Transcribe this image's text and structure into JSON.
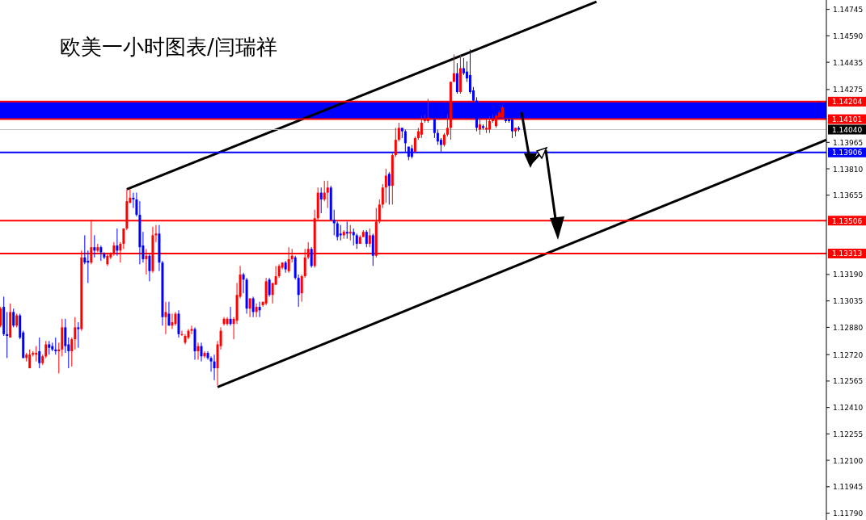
{
  "chart_data": {
    "type": "candlestick",
    "title": "欧美一小时图表/闫瑞祥",
    "tick_labels": "y",
    "grid": false,
    "ylim": [
      1.1175,
      1.148
    ],
    "yticks": [
      1.14745,
      {
        "value": 1.1459,
        "label": "1.14590"
      },
      1.14435,
      1.14275,
      1.13965,
      {
        "value": 1.1381,
        "label": "1.13810"
      },
      1.13655,
      {
        "value": 1.1319,
        "label": "1.13190"
      },
      1.13035,
      {
        "value": 1.1288,
        "label": "1.12880"
      },
      {
        "value": 1.1272,
        "label": "1.12720"
      },
      1.12565,
      {
        "value": 1.1241,
        "label": "1.12410"
      },
      1.12255,
      {
        "value": 1.121,
        "label": "1.12100"
      },
      1.11945,
      {
        "value": 1.1179,
        "label": "1.11790"
      }
    ],
    "bands": [
      {
        "axis": "y",
        "from": 1.14101,
        "to": 1.14204,
        "color": "#0000ff"
      }
    ],
    "ref_lines": [
      {
        "axis": "y",
        "value": 1.14204,
        "label": "1.14204",
        "color": "#ff0000"
      },
      {
        "axis": "y",
        "value": 1.14101,
        "label": "1.14101",
        "color": "#ff0000"
      },
      {
        "axis": "y",
        "value": 1.1404,
        "label": "1.14040",
        "color": "#c0c0c0"
      },
      {
        "axis": "y",
        "value": 1.13906,
        "label": "1.13906",
        "color": "#0000ff"
      },
      {
        "axis": "y",
        "value": 1.13506,
        "label": "1.13506",
        "color": "#ff0000"
      },
      {
        "axis": "y",
        "value": 1.13313,
        "label": "1.13313",
        "color": "#ff0000"
      }
    ],
    "categories": [
      null,
      null,
      null,
      null,
      null,
      null,
      null,
      null,
      null,
      null,
      null,
      null,
      null,
      null,
      null,
      null,
      null,
      null,
      null,
      null,
      null,
      null,
      null,
      null,
      null,
      null,
      null,
      null,
      null,
      null,
      null,
      null,
      null,
      null,
      null,
      null,
      null,
      null,
      null,
      null,
      null,
      null,
      null,
      null,
      null,
      null,
      null,
      null,
      null,
      null,
      null,
      null,
      null,
      null,
      null,
      null,
      null,
      null,
      null,
      null,
      null,
      null,
      null,
      null,
      null,
      null,
      null,
      null,
      null,
      null,
      null,
      null,
      null,
      null,
      null,
      null,
      null,
      null,
      null,
      null,
      null,
      null,
      null,
      null,
      null,
      null,
      null,
      null,
      null,
      null,
      null,
      null,
      null,
      null,
      null,
      null,
      null,
      null,
      null,
      null,
      null,
      null,
      null,
      null,
      null,
      null,
      null,
      null,
      null,
      null,
      null,
      null,
      null,
      null,
      null,
      null,
      null,
      null,
      null,
      null,
      null,
      null,
      null,
      null,
      null,
      null,
      null,
      null,
      null,
      null,
      null,
      null,
      null,
      null,
      null,
      null,
      null,
      null,
      null,
      null,
      null,
      null,
      null,
      null,
      null,
      null,
      null,
      null,
      null,
      null,
      null,
      null,
      null,
      null,
      null,
      null,
      null,
      null,
      null,
      null,
      null,
      null,
      null,
      null,
      null,
      null,
      null,
      null,
      null,
      null,
      null,
      null,
      null,
      null,
      null,
      null,
      null,
      null,
      null,
      null,
      null,
      null,
      null,
      null,
      null,
      null,
      null,
      null,
      null,
      null,
      null,
      null,
      null,
      null,
      null,
      null,
      null,
      null,
      null,
      null,
      null,
      null,
      null,
      null,
      null,
      null,
      null,
      null,
      null,
      null,
      null,
      null,
      null,
      null,
      null,
      null,
      null,
      null,
      null,
      null,
      null,
      null,
      null,
      null,
      null,
      null,
      null,
      null,
      null,
      null,
      null,
      null,
      null,
      null,
      null,
      null,
      null,
      null,
      null,
      null,
      null,
      null,
      null,
      null,
      null,
      null,
      null,
      null,
      null,
      null,
      null,
      null,
      null,
      null,
      null,
      null
    ],
    "ohlc": [
      [
        1.1289,
        1.13,
        1.1288,
        1.1299
      ],
      [
        1.13,
        1.1306,
        1.1283,
        1.1284
      ],
      [
        1.1284,
        1.1297,
        1.127,
        1.1283
      ],
      [
        1.1282,
        1.1302,
        1.1282,
        1.1297
      ],
      [
        1.1297,
        1.1299,
        1.1288,
        1.1289
      ],
      [
        1.1289,
        1.1296,
        1.1288,
        1.1295
      ],
      [
        1.1295,
        1.1296,
        1.1281,
        1.1282
      ],
      [
        1.1285,
        1.1286,
        1.127,
        1.127
      ],
      [
        1.127,
        1.1273,
        1.1268,
        1.1272
      ],
      [
        1.1264,
        1.1275,
        1.1264,
        1.1272
      ],
      [
        1.1272,
        1.1274,
        1.1271,
        1.1273
      ],
      [
        1.1272,
        1.1277,
        1.1268,
        1.1273
      ],
      [
        1.1274,
        1.1282,
        1.1264,
        1.1267
      ],
      [
        1.1267,
        1.1272,
        1.1266,
        1.1271
      ],
      [
        1.1271,
        1.128,
        1.127,
        1.1278
      ],
      [
        1.1278,
        1.128,
        1.1272,
        1.1276
      ],
      [
        1.1277,
        1.1279,
        1.1274,
        1.1275
      ],
      [
        1.1275,
        1.1282,
        1.1272,
        1.1274
      ],
      [
        1.1274,
        1.1279,
        1.1261,
        1.1275
      ],
      [
        1.1275,
        1.1293,
        1.1271,
        1.1288
      ],
      [
        1.1288,
        1.1293,
        1.1273,
        1.1277
      ],
      [
        1.1278,
        1.1282,
        1.1264,
        1.1274
      ],
      [
        1.1274,
        1.1282,
        1.1265,
        1.1281
      ],
      [
        1.1281,
        1.1294,
        1.1275,
        1.1288
      ],
      [
        1.1288,
        1.1291,
        1.1276,
        1.1287
      ],
      [
        1.1287,
        1.1333,
        1.1286,
        1.1329
      ],
      [
        1.1329,
        1.1342,
        1.1325,
        1.1326
      ],
      [
        1.1327,
        1.1333,
        1.1314,
        1.1326
      ],
      [
        1.1326,
        1.1351,
        1.1325,
        1.1335
      ],
      [
        1.1335,
        1.1342,
        1.1329,
        1.1333
      ],
      [
        1.1333,
        1.1337,
        1.1332,
        1.1335
      ],
      [
        1.1335,
        1.1336,
        1.1327,
        1.1332
      ],
      [
        1.1331,
        1.1332,
        1.1328,
        1.1329
      ],
      [
        1.1325,
        1.1331,
        1.1324,
        1.133
      ],
      [
        1.1329,
        1.1332,
        1.1328,
        1.1331
      ],
      [
        1.1331,
        1.1338,
        1.133,
        1.1336
      ],
      [
        1.1336,
        1.1346,
        1.133,
        1.1333
      ],
      [
        1.1333,
        1.1338,
        1.1326,
        1.1337
      ],
      [
        1.1337,
        1.1346,
        1.1334,
        1.1346
      ],
      [
        1.1346,
        1.1369,
        1.1345,
        1.1362
      ],
      [
        1.1361,
        1.1369,
        1.1361,
        1.1364
      ],
      [
        1.1364,
        1.1367,
        1.1358,
        1.1363
      ],
      [
        1.1363,
        1.1367,
        1.1353,
        1.1354
      ],
      [
        1.1354,
        1.1362,
        1.1325,
        1.1335
      ],
      [
        1.1336,
        1.1344,
        1.1326,
        1.1328
      ],
      [
        1.1328,
        1.1334,
        1.1319,
        1.133
      ],
      [
        1.133,
        1.1331,
        1.1315,
        1.1321
      ],
      [
        1.1321,
        1.1347,
        1.132,
        1.1342
      ],
      [
        1.1342,
        1.1348,
        1.1338,
        1.1343
      ],
      [
        1.1343,
        1.1348,
        1.1321,
        1.1326
      ],
      [
        1.1326,
        1.1327,
        1.1289,
        1.1294
      ],
      [
        1.1294,
        1.1303,
        1.1284,
        1.1297
      ],
      [
        1.1296,
        1.1303,
        1.1289,
        1.1289
      ],
      [
        1.1289,
        1.1296,
        1.1287,
        1.1291
      ],
      [
        1.129,
        1.1297,
        1.1289,
        1.1296
      ],
      [
        1.1296,
        1.1298,
        1.1282,
        1.1284
      ],
      [
        1.1284,
        1.1286,
        1.1283,
        1.1284
      ],
      [
        1.1279,
        1.1284,
        1.1278,
        1.1283
      ],
      [
        1.1282,
        1.1287,
        1.1281,
        1.1286
      ],
      [
        1.1286,
        1.1289,
        1.1284,
        1.1287
      ],
      [
        1.1287,
        1.1288,
        1.1269,
        1.1274
      ],
      [
        1.1274,
        1.1279,
        1.1269,
        1.1277
      ],
      [
        1.1277,
        1.1279,
        1.1268,
        1.1271
      ],
      [
        1.1271,
        1.1274,
        1.127,
        1.1273
      ],
      [
        1.1273,
        1.1274,
        1.1269,
        1.127
      ],
      [
        1.127,
        1.1271,
        1.1262,
        1.1268
      ],
      [
        1.1268,
        1.1272,
        1.1257,
        1.1264
      ],
      [
        1.1264,
        1.128,
        1.1254,
        1.1278
      ],
      [
        1.1277,
        1.1288,
        1.1275,
        1.1286
      ],
      [
        1.129,
        1.1294,
        1.1289,
        1.1293
      ],
      [
        1.129,
        1.1294,
        1.1289,
        1.1293
      ],
      [
        1.1293,
        1.13,
        1.1289,
        1.129
      ],
      [
        1.129,
        1.1294,
        1.1281,
        1.1293
      ],
      [
        1.1292,
        1.1314,
        1.129,
        1.1307
      ],
      [
        1.1306,
        1.1324,
        1.1305,
        1.1319
      ],
      [
        1.1319,
        1.132,
        1.1308,
        1.1316
      ],
      [
        1.1316,
        1.1317,
        1.1296,
        1.1299
      ],
      [
        1.1299,
        1.1305,
        1.1294,
        1.1305
      ],
      [
        1.1305,
        1.1306,
        1.1294,
        1.1297
      ],
      [
        1.1297,
        1.1302,
        1.1294,
        1.13
      ],
      [
        1.13,
        1.1303,
        1.1294,
        1.1298
      ],
      [
        1.1301,
        1.1303,
        1.13,
        1.1303
      ],
      [
        1.1302,
        1.1317,
        1.1301,
        1.1315
      ],
      [
        1.1316,
        1.1317,
        1.1306,
        1.1307
      ],
      [
        1.1307,
        1.1314,
        1.1302,
        1.1314
      ],
      [
        1.1313,
        1.1324,
        1.1313,
        1.1318
      ],
      [
        1.1318,
        1.1325,
        1.1317,
        1.1324
      ],
      [
        1.1323,
        1.1326,
        1.1322,
        1.1326
      ],
      [
        1.1326,
        1.1327,
        1.132,
        1.1322
      ],
      [
        1.1321,
        1.1335,
        1.132,
        1.1328
      ],
      [
        1.1328,
        1.1334,
        1.1326,
        1.133
      ],
      [
        1.1329,
        1.133,
        1.1316,
        1.1317
      ],
      [
        1.1317,
        1.1319,
        1.13,
        1.1307
      ],
      [
        1.1308,
        1.1319,
        1.1303,
        1.1318
      ],
      [
        1.1318,
        1.1334,
        1.1317,
        1.1329
      ],
      [
        1.1329,
        1.1338,
        1.1328,
        1.1334
      ],
      [
        1.1334,
        1.1335,
        1.1323,
        1.1324
      ],
      [
        1.1324,
        1.1357,
        1.1323,
        1.1352
      ],
      [
        1.1352,
        1.137,
        1.1351,
        1.1367
      ],
      [
        1.1367,
        1.137,
        1.1355,
        1.1363
      ],
      [
        1.1363,
        1.1374,
        1.1362,
        1.1367
      ],
      [
        1.1367,
        1.1374,
        1.1358,
        1.137
      ],
      [
        1.137,
        1.1371,
        1.1351,
        1.1351
      ],
      [
        1.1351,
        1.1357,
        1.1342,
        1.1349
      ],
      [
        1.1349,
        1.135,
        1.1339,
        1.1341
      ],
      [
        1.1343,
        1.1348,
        1.1339,
        1.1342
      ],
      [
        1.1342,
        1.1345,
        1.134,
        1.1344
      ],
      [
        1.1344,
        1.135,
        1.134,
        1.1343
      ],
      [
        1.1343,
        1.1348,
        1.1339,
        1.1344
      ],
      [
        1.1344,
        1.1346,
        1.1336,
        1.1342
      ],
      [
        1.1342,
        1.1343,
        1.1334,
        1.1337
      ],
      [
        1.1337,
        1.1342,
        1.1337,
        1.1341
      ],
      [
        1.1341,
        1.1345,
        1.1341,
        1.1344
      ],
      [
        1.1344,
        1.1345,
        1.1335,
        1.1337
      ],
      [
        1.1337,
        1.1346,
        1.1335,
        1.1342
      ],
      [
        1.1342,
        1.1343,
        1.1324,
        1.133
      ],
      [
        1.133,
        1.1358,
        1.1329,
        1.135
      ],
      [
        1.135,
        1.1363,
        1.1349,
        1.136
      ],
      [
        1.136,
        1.1372,
        1.1358,
        1.137
      ],
      [
        1.137,
        1.1381,
        1.1361,
        1.1377
      ],
      [
        1.1378,
        1.1379,
        1.136,
        1.1371
      ],
      [
        1.1371,
        1.139,
        1.136,
        1.1389
      ],
      [
        1.1389,
        1.1405,
        1.1388,
        1.1398
      ],
      [
        1.1398,
        1.1408,
        1.1397,
        1.1405
      ],
      [
        1.1405,
        1.1405,
        1.1399,
        1.1403
      ],
      [
        1.1403,
        1.1404,
        1.1391,
        1.1396
      ],
      [
        1.1394,
        1.1394,
        1.1386,
        1.1388
      ],
      [
        1.1393,
        1.1395,
        1.1387,
        1.1388
      ],
      [
        1.1391,
        1.14,
        1.139,
        1.1399
      ],
      [
        1.1399,
        1.1405,
        1.1398,
        1.1403
      ],
      [
        1.1401,
        1.1412,
        1.1399,
        1.1408
      ],
      [
        1.1409,
        1.1413,
        1.1408,
        1.141
      ],
      [
        1.1409,
        1.1422,
        1.1408,
        1.1411
      ],
      null,
      [
        1.141,
        1.1411,
        1.1399,
        1.1402
      ],
      [
        1.1402,
        1.1404,
        1.1395,
        1.1397
      ],
      [
        1.1398,
        1.1399,
        1.1391,
        1.1395
      ],
      [
        1.1395,
        1.1402,
        1.1394,
        1.1401
      ],
      [
        1.1401,
        1.1413,
        1.14,
        1.1405
      ],
      [
        1.1405,
        1.1432,
        1.1398,
        1.1432
      ],
      [
        1.1432,
        1.1448,
        1.1432,
        1.1437
      ],
      [
        1.1437,
        1.1443,
        1.1425,
        1.1426
      ],
      [
        1.1426,
        1.1448,
        1.1425,
        1.144
      ],
      [
        1.144,
        1.1446,
        1.1436,
        1.1437
      ],
      [
        1.1438,
        1.1444,
        1.1432,
        1.1434
      ],
      [
        1.1436,
        1.1451,
        1.1425,
        1.1426
      ],
      [
        1.1427,
        1.1429,
        1.142,
        1.1421
      ],
      [
        1.1421,
        1.1423,
        1.1403,
        1.1405
      ],
      [
        1.1404,
        1.141,
        1.1401,
        1.1407
      ],
      [
        1.1406,
        1.1407,
        1.1404,
        1.1405
      ],
      [
        1.1404,
        1.141,
        1.1402,
        1.1405
      ],
      [
        1.1404,
        1.1412,
        1.1402,
        1.1409
      ],
      [
        1.1409,
        1.1413,
        1.1408,
        1.141
      ],
      [
        1.1406,
        1.1413,
        1.1405,
        1.1412
      ],
      [
        1.1411,
        1.1415,
        1.1411,
        1.1414
      ],
      [
        1.1411,
        1.1418,
        1.1411,
        1.1417
      ],
      [
        1.141,
        1.1411,
        1.1408,
        1.1409
      ],
      [
        1.141,
        1.1411,
        1.1408,
        1.1409
      ],
      [
        1.141,
        1.1411,
        1.1399,
        1.1403
      ],
      [
        1.1403,
        1.1405,
        1.14,
        1.1405
      ],
      [
        1.1405,
        1.1406,
        1.1403,
        1.1404
      ],
      null,
      null,
      null,
      null,
      null,
      null,
      null,
      null,
      null,
      null,
      null,
      null,
      null,
      null,
      null,
      null,
      null,
      null,
      null,
      null,
      null,
      null,
      null,
      null,
      null,
      null,
      null,
      null,
      null,
      null,
      null,
      null,
      null,
      null,
      null,
      null,
      null,
      null,
      null,
      null,
      null,
      null,
      null,
      null,
      null,
      null,
      null,
      null,
      null,
      null,
      null,
      null,
      null,
      null,
      null,
      null,
      null,
      null,
      null,
      null,
      null,
      null,
      null,
      null,
      null,
      null,
      null,
      null,
      null,
      null,
      null,
      null,
      null,
      null,
      null,
      null,
      null,
      null,
      null,
      null,
      null,
      null,
      null,
      null,
      null,
      null,
      null,
      null,
      null,
      null,
      null,
      null,
      null,
      null,
      null
    ],
    "series": [
      {
        "type": "line",
        "color": "#000000",
        "values": [
          null,
          null,
          null,
          null,
          null,
          null,
          null,
          null,
          null,
          null,
          null,
          null,
          null,
          null,
          null,
          null,
          null,
          null,
          null,
          null,
          null,
          null,
          null,
          null,
          null,
          null,
          null,
          null,
          null,
          null,
          null,
          null,
          null,
          null,
          null,
          null,
          null,
          null,
          null,
          1.1369,
          null,
          null,
          null,
          null,
          null,
          null,
          null,
          null,
          null,
          null,
          null,
          null,
          null,
          null,
          null,
          null,
          null,
          null,
          null,
          null,
          null,
          null,
          null,
          null,
          null,
          null,
          null,
          null,
          null,
          null,
          null,
          null,
          null,
          null,
          null,
          null,
          null,
          null,
          null,
          null,
          null,
          null,
          null,
          null,
          null,
          null,
          null,
          null,
          null,
          null,
          null,
          null,
          null,
          null,
          null,
          null,
          null,
          null,
          null,
          null,
          null,
          null,
          null,
          null,
          null,
          null,
          null,
          null,
          null,
          null,
          null,
          null,
          null,
          null,
          null,
          null,
          null,
          null,
          null,
          null,
          null,
          null,
          null,
          null,
          null,
          null,
          null,
          null,
          null,
          null,
          null,
          null,
          null,
          null,
          null,
          null,
          null,
          null,
          null,
          null,
          null,
          null,
          null,
          null,
          null,
          null,
          null,
          null,
          null,
          null,
          null,
          null,
          null,
          null,
          null,
          null,
          null,
          null,
          null,
          null,
          null,
          null,
          null,
          null,
          null,
          null,
          null,
          null,
          null,
          null,
          null,
          null,
          null,
          null,
          null,
          null,
          null,
          null,
          null,
          null,
          null,
          null,
          null,
          null,
          1.1479,
          null,
          null,
          null,
          null,
          null,
          null,
          null,
          null,
          null,
          null,
          null,
          null,
          null,
          null,
          null,
          null,
          null,
          null,
          null,
          null,
          null,
          null,
          null,
          null,
          null,
          null,
          null,
          null,
          null,
          null,
          null,
          null,
          null,
          null,
          null,
          null,
          null,
          null,
          null,
          null,
          null,
          null,
          null,
          null,
          null,
          null,
          null,
          null,
          null,
          null,
          null,
          null,
          null,
          null,
          null,
          null,
          null,
          null,
          null,
          null,
          null,
          null,
          null,
          null,
          null,
          null,
          null,
          null,
          null,
          null,
          null
        ]
      },
      {
        "type": "line",
        "color": "#000000",
        "values": [
          null,
          null,
          null,
          null,
          null,
          null,
          null,
          null,
          null,
          null,
          null,
          null,
          null,
          null,
          null,
          null,
          null,
          null,
          null,
          null,
          null,
          null,
          null,
          null,
          null,
          null,
          null,
          null,
          null,
          null,
          null,
          null,
          null,
          null,
          null,
          null,
          null,
          null,
          null,
          null,
          null,
          null,
          null,
          null,
          null,
          null,
          null,
          null,
          null,
          null,
          null,
          null,
          null,
          null,
          null,
          null,
          null,
          null,
          null,
          null,
          null,
          null,
          null,
          null,
          null,
          null,
          null,
          1.1253,
          null,
          null,
          null,
          null,
          null,
          null,
          null,
          null,
          null,
          null,
          null,
          null,
          null,
          null,
          null,
          null,
          null,
          null,
          null,
          null,
          null,
          null,
          null,
          null,
          null,
          null,
          null,
          null,
          null,
          null,
          null,
          null,
          null,
          null,
          null,
          null,
          null,
          null,
          null,
          null,
          null,
          null,
          null,
          null,
          null,
          null,
          null,
          null,
          null,
          null,
          null,
          null,
          null,
          null,
          null,
          null,
          null,
          null,
          null,
          null,
          null,
          null,
          null,
          null,
          null,
          null,
          null,
          null,
          null,
          null,
          null,
          null,
          null,
          null,
          null,
          null,
          null,
          null,
          null,
          null,
          null,
          null,
          null,
          null,
          null,
          null,
          null,
          null,
          null,
          null,
          null,
          null,
          null,
          null,
          null,
          null,
          null,
          null,
          null,
          null,
          null,
          null,
          null,
          null,
          null,
          null,
          null,
          null,
          null,
          null,
          null,
          null,
          null,
          null,
          null,
          null,
          null,
          null,
          null,
          null,
          null,
          null,
          null,
          null,
          null,
          null,
          null,
          null,
          null,
          null,
          null,
          null,
          null,
          null,
          null,
          null,
          null,
          null,
          null,
          null,
          null,
          null,
          null,
          null,
          null,
          null,
          null,
          null,
          null,
          null,
          null,
          null,
          null,
          null,
          null,
          null,
          null,
          null,
          null,
          null,
          null,
          null,
          null,
          null,
          null,
          null,
          null,
          null,
          null,
          null,
          null,
          null,
          null,
          null,
          null,
          null,
          null,
          null,
          null,
          null,
          null,
          null,
          null,
          null,
          null,
          null,
          null,
          1.1398
        ]
      }
    ]
  }
}
